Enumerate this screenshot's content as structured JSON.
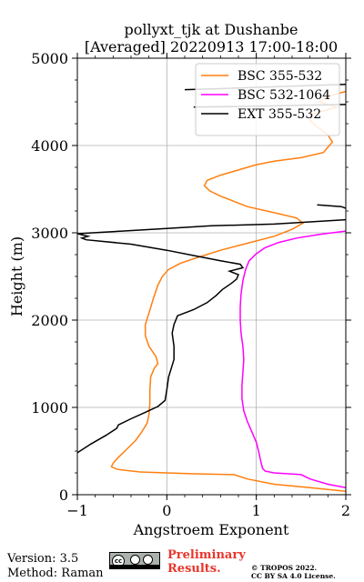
{
  "chart_data": {
    "type": "line",
    "title": "pollyxt_tjk at Dushanbe",
    "subtitle": "[Averaged] 20220913 17:00-18:00",
    "xlabel": "Angstroem Exponent",
    "ylabel": "Height (m)",
    "xlim": [
      -1,
      2
    ],
    "ylim": [
      0,
      5000
    ],
    "xticks": [
      "−1",
      "0",
      "1",
      "2"
    ],
    "yticks": [
      "0",
      "1000",
      "2000",
      "3000",
      "4000",
      "5000"
    ],
    "xtick_values": [
      -1,
      0,
      1,
      2
    ],
    "ytick_values": [
      0,
      1000,
      2000,
      3000,
      4000,
      5000
    ],
    "grid": true,
    "legend_position": "top-right",
    "series": [
      {
        "name": "BSC 355-532",
        "color": "#ff7f0e",
        "points": [
          [
            2.0,
            40
          ],
          [
            1.6,
            80
          ],
          [
            1.2,
            120
          ],
          [
            0.9,
            180
          ],
          [
            0.75,
            230
          ],
          [
            0.3,
            240
          ],
          [
            -0.3,
            260
          ],
          [
            -0.55,
            290
          ],
          [
            -0.62,
            320
          ],
          [
            -0.6,
            360
          ],
          [
            -0.55,
            420
          ],
          [
            -0.45,
            520
          ],
          [
            -0.35,
            620
          ],
          [
            -0.28,
            720
          ],
          [
            -0.22,
            820
          ],
          [
            -0.2,
            920
          ],
          [
            -0.19,
            1050
          ],
          [
            -0.19,
            1200
          ],
          [
            -0.18,
            1350
          ],
          [
            -0.14,
            1450
          ],
          [
            -0.1,
            1500
          ],
          [
            -0.12,
            1580
          ],
          [
            -0.2,
            1700
          ],
          [
            -0.24,
            1820
          ],
          [
            -0.24,
            1950
          ],
          [
            -0.2,
            2080
          ],
          [
            -0.15,
            2250
          ],
          [
            -0.1,
            2400
          ],
          [
            -0.05,
            2500
          ],
          [
            0.02,
            2580
          ],
          [
            0.15,
            2650
          ],
          [
            0.35,
            2720
          ],
          [
            0.6,
            2800
          ],
          [
            0.9,
            2880
          ],
          [
            1.2,
            2960
          ],
          [
            1.4,
            3040
          ],
          [
            1.52,
            3110
          ],
          [
            1.45,
            3170
          ],
          [
            1.2,
            3230
          ],
          [
            0.9,
            3300
          ],
          [
            0.75,
            3360
          ],
          [
            0.6,
            3420
          ],
          [
            0.48,
            3480
          ],
          [
            0.42,
            3540
          ],
          [
            0.45,
            3600
          ],
          [
            0.6,
            3660
          ],
          [
            0.8,
            3720
          ],
          [
            1.0,
            3780
          ],
          [
            1.2,
            3820
          ],
          [
            1.5,
            3860
          ],
          [
            1.75,
            3920
          ],
          [
            1.8,
            3980
          ],
          [
            1.85,
            4040
          ],
          [
            1.8,
            4120
          ],
          [
            1.7,
            4200
          ],
          [
            1.6,
            4280
          ],
          [
            1.62,
            4360
          ],
          [
            1.9,
            4440
          ],
          [
            1.7,
            4500
          ],
          [
            1.8,
            4560
          ],
          [
            2.0,
            4620
          ]
        ]
      },
      {
        "name": "BSC 532-1064",
        "color": "#ff00ff",
        "points": [
          [
            2.0,
            80
          ],
          [
            1.8,
            120
          ],
          [
            1.6,
            180
          ],
          [
            1.5,
            230
          ],
          [
            1.2,
            250
          ],
          [
            1.1,
            270
          ],
          [
            1.07,
            300
          ],
          [
            1.05,
            380
          ],
          [
            1.03,
            480
          ],
          [
            1.0,
            600
          ],
          [
            0.95,
            720
          ],
          [
            0.9,
            840
          ],
          [
            0.86,
            960
          ],
          [
            0.84,
            1100
          ],
          [
            0.84,
            1250
          ],
          [
            0.85,
            1400
          ],
          [
            0.86,
            1550
          ],
          [
            0.85,
            1700
          ],
          [
            0.83,
            1850
          ],
          [
            0.82,
            2000
          ],
          [
            0.82,
            2150
          ],
          [
            0.83,
            2300
          ],
          [
            0.85,
            2450
          ],
          [
            0.88,
            2580
          ],
          [
            0.92,
            2680
          ],
          [
            1.0,
            2760
          ],
          [
            1.1,
            2830
          ],
          [
            1.25,
            2890
          ],
          [
            1.45,
            2940
          ],
          [
            1.7,
            2980
          ],
          [
            2.0,
            3020
          ]
        ]
      },
      {
        "name": "EXT 355-532",
        "color": "#000000",
        "points": [
          [
            -1.0,
            480
          ],
          [
            -0.85,
            580
          ],
          [
            -0.68,
            680
          ],
          [
            -0.56,
            760
          ],
          [
            -0.54,
            800
          ],
          [
            -0.4,
            870
          ],
          [
            -0.25,
            940
          ],
          [
            -0.1,
            1010
          ],
          [
            -0.02,
            1080
          ],
          [
            0.0,
            1200
          ],
          [
            0.02,
            1350
          ],
          [
            0.05,
            1450
          ],
          [
            0.08,
            1550
          ],
          [
            0.08,
            1700
          ],
          [
            0.06,
            1850
          ],
          [
            0.08,
            1950
          ],
          [
            0.12,
            2050
          ],
          [
            0.3,
            2120
          ],
          [
            0.45,
            2200
          ],
          [
            0.55,
            2280
          ],
          [
            0.62,
            2350
          ],
          [
            0.72,
            2420
          ],
          [
            0.78,
            2470
          ],
          [
            0.8,
            2520
          ],
          [
            0.7,
            2560
          ],
          [
            0.85,
            2600
          ],
          [
            0.82,
            2640
          ],
          [
            0.6,
            2680
          ],
          [
            0.3,
            2740
          ],
          [
            0.0,
            2800
          ],
          [
            -0.4,
            2870
          ],
          [
            -0.9,
            2920
          ],
          [
            -0.95,
            2940
          ],
          [
            -0.88,
            2960
          ],
          [
            -1.0,
            2990
          ],
          [
            -0.5,
            3020
          ],
          [
            0.0,
            3050
          ],
          [
            0.5,
            3080
          ],
          [
            1.2,
            3100
          ],
          [
            2.0,
            3150
          ]
        ]
      },
      {
        "name": "",
        "color": "#000000",
        "points": [
          [
            1.68,
            3320
          ],
          [
            1.95,
            3300
          ],
          [
            2.0,
            3280
          ]
        ]
      },
      {
        "name": "",
        "color": "#000000",
        "points": [
          [
            0.2,
            4640
          ],
          [
            0.55,
            4650
          ],
          [
            2.0,
            4700
          ]
        ]
      },
      {
        "name": "",
        "color": "#000000",
        "points": [
          [
            0.3,
            4440
          ],
          [
            1.0,
            4450
          ],
          [
            2.0,
            4470
          ]
        ]
      }
    ]
  },
  "footer": {
    "version": "Version: 3.5",
    "method": "Method: Raman",
    "preliminary_line1": "Preliminary",
    "preliminary_line2": "Results.",
    "copyright_line1": "© TROPOS 2022.",
    "copyright_line2": "CC BY SA 4.0 License.",
    "license_badge_icon": "cc-by-sa-icon"
  }
}
